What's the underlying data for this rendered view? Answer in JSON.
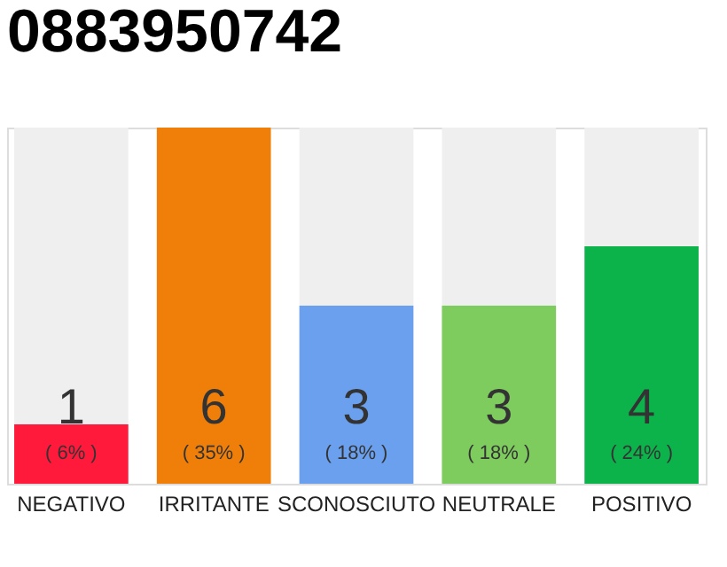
{
  "chart_data": {
    "type": "bar",
    "title": "0883950742",
    "categories": [
      "NEGATIVO",
      "IRRITANTE",
      "SCONOSCIUTO",
      "NEUTRALE",
      "POSITIVO"
    ],
    "values": [
      1,
      6,
      3,
      3,
      4
    ],
    "colors": [
      "#ff1a3c",
      "#f07f0a",
      "#6aa0ee",
      "#7ecb5e",
      "#0cb24a"
    ],
    "value_labels": [
      "1",
      "6",
      "3",
      "3",
      "4"
    ],
    "annotations": [
      "( 6% )",
      "( 35% )",
      "( 18% )",
      "( 18% )",
      "( 24% )"
    ],
    "tick_labels": "x"
  }
}
